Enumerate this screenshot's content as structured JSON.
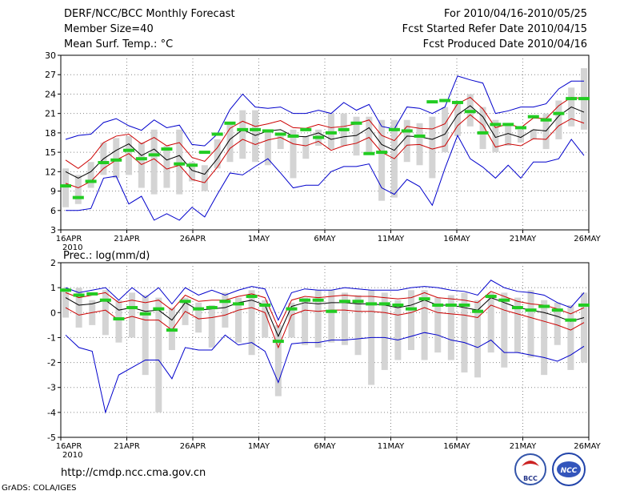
{
  "header": {
    "title": "DERF/NCC/BCC Monthly Forecast",
    "member_size": "Member Size=40",
    "variable": "Mean Surf. Temp.: °C",
    "period": "For 2010/04/16-2010/05/25",
    "fcst_started": "Fcst Started Refer Date 2010/04/15",
    "fcst_produced": "Fcst Produced Date 2010/04/16"
  },
  "footer": {
    "url": "http://cmdp.ncc.cma.gov.cn",
    "credit": "GrADS: COLA/IGES",
    "logo_left": "BCC",
    "logo_right": "NCC"
  },
  "colors": {
    "box": "#d4d4d4",
    "median": "#22cc22",
    "mean": "#000000",
    "sd": "#cc0000",
    "minmax": "#0000cc"
  },
  "chart_data": [
    {
      "type": "box",
      "panel": "temperature",
      "title": "Mean Surf. Temp.: °C",
      "x_ticks": [
        "16APR",
        "21APR",
        "26APR",
        "1MAY",
        "6MAY",
        "11MAY",
        "16MAY",
        "21MAY",
        "26MAY"
      ],
      "x_tick_days": [
        0,
        5,
        10,
        15,
        20,
        25,
        30,
        35,
        40
      ],
      "year_label": "2010",
      "ylim": [
        3,
        30
      ],
      "yticks": [
        3,
        6,
        9,
        12,
        15,
        18,
        21,
        24,
        27,
        30
      ],
      "mean": [
        12,
        11,
        12,
        14,
        15.3,
        16.3,
        14.5,
        15.5,
        13.8,
        14.5,
        12.2,
        11.6,
        14,
        17,
        18.5,
        17.6,
        18.3,
        18.5,
        17.5,
        17.4,
        18,
        17,
        17.4,
        17.6,
        18.8,
        16.2,
        15.3,
        17.5,
        17.4,
        17,
        17.8,
        20.8,
        22.2,
        20.5,
        17.3,
        17.9,
        17.3,
        18.5,
        18.3,
        20.6,
        22,
        21.2
      ],
      "sd_upper": [
        13.8,
        12.5,
        14,
        16.5,
        17.5,
        17.8,
        16.3,
        17.3,
        16,
        16.5,
        14.2,
        13.6,
        15.7,
        18.7,
        19.8,
        19,
        19.4,
        19.9,
        18.8,
        18.7,
        19.3,
        18.8,
        19,
        19.4,
        20,
        17.6,
        16.8,
        19,
        18.7,
        18.6,
        19.4,
        22.5,
        23.5,
        21.7,
        18.8,
        19.4,
        18.8,
        20.3,
        20.2,
        22.2,
        23.5,
        23.3
      ],
      "sd_lower": [
        10.2,
        9.5,
        10.5,
        12.5,
        13.8,
        14.8,
        13.1,
        14,
        12.4,
        13,
        10.8,
        10.3,
        12.7,
        15.6,
        17,
        16.2,
        16.9,
        17.3,
        16.3,
        16,
        16.7,
        15.3,
        16,
        16.4,
        17.3,
        15,
        14,
        16.1,
        16.2,
        15.5,
        16,
        19.1,
        20.8,
        19.2,
        15.8,
        16.3,
        16,
        17.1,
        17,
        19.1,
        20.2,
        19.5
      ],
      "max": [
        17,
        17.6,
        17.8,
        19.6,
        20.2,
        19.1,
        18.4,
        20,
        18.8,
        19.2,
        16.2,
        16,
        17.8,
        21.6,
        24,
        22,
        21.8,
        22,
        21,
        21,
        21.5,
        21,
        22.7,
        21.5,
        22.4,
        19,
        18.6,
        22,
        21.8,
        21,
        22,
        26.8,
        26.2,
        25.7,
        21,
        21.4,
        22,
        22,
        22.5,
        24.8,
        26,
        26
      ],
      "min": [
        6,
        6,
        6.3,
        11,
        11.3,
        7,
        8.2,
        4.5,
        5.5,
        4.5,
        6.5,
        5,
        8.5,
        11.8,
        11.5,
        12.8,
        14,
        11.8,
        9.5,
        9.9,
        9.9,
        12,
        12.8,
        12.8,
        13.2,
        9.5,
        8.5,
        10.8,
        9.7,
        6.8,
        12.5,
        17.6,
        14,
        12.7,
        11,
        13,
        11,
        13.5,
        13.5,
        14,
        17,
        14.5
      ],
      "box_high": [
        12.5,
        11.5,
        13.5,
        16.5,
        17.2,
        17.5,
        16.5,
        18.5,
        16,
        18.5,
        13.5,
        13,
        17,
        19.5,
        21.5,
        21.5,
        18.5,
        17.5,
        18.5,
        17.5,
        18.5,
        21,
        21,
        20.5,
        20.5,
        20,
        20,
        20,
        19.5,
        20.5,
        22,
        22.5,
        24,
        22,
        20,
        19.5,
        18.5,
        18.5,
        21,
        23,
        25,
        28
      ],
      "box_low": [
        6.5,
        7,
        9.5,
        11.5,
        11,
        11.5,
        9.5,
        8.5,
        9.5,
        8.5,
        10.5,
        9,
        12.5,
        13.5,
        14,
        13.5,
        13,
        15.5,
        11,
        14,
        16,
        15.5,
        16,
        14.5,
        15,
        7.5,
        8,
        13.5,
        13,
        11,
        15,
        17.5,
        19,
        15.5,
        15,
        16,
        16.5,
        17,
        15.5,
        17,
        19,
        18.5
      ],
      "median": [
        9.8,
        8,
        10.5,
        13.4,
        13.8,
        15.3,
        14,
        14.6,
        15.5,
        13.2,
        13,
        15,
        17.8,
        19.5,
        18.5,
        18.5,
        18.3,
        17.8,
        17.5,
        18.5,
        17.3,
        18,
        18.5,
        19.5,
        14.8,
        15,
        18.5,
        18.3,
        17.5,
        22.8,
        23,
        22.7,
        21.3,
        18,
        19.3,
        19.3,
        18.8,
        20.5,
        20,
        21,
        23.3,
        23.3
      ]
    },
    {
      "type": "box",
      "panel": "precipitation",
      "title": "Prec.: log(mm/d)",
      "x_ticks": [
        "16APR",
        "21APR",
        "26APR",
        "1MAY",
        "6MAY",
        "11MAY",
        "16MAY",
        "21MAY",
        "26MAY"
      ],
      "x_tick_days": [
        0,
        5,
        10,
        15,
        20,
        25,
        30,
        35,
        40
      ],
      "year_label": "2010",
      "ylim": [
        -5,
        2
      ],
      "yticks": [
        -5,
        -4,
        -3,
        -2,
        -1,
        0,
        1,
        2
      ],
      "mean": [
        0.6,
        0.3,
        0.35,
        0.5,
        0.1,
        0.2,
        0.05,
        0.1,
        -0.3,
        0.4,
        0.1,
        0.15,
        0.2,
        0.4,
        0.5,
        0.3,
        -0.95,
        0.25,
        0.4,
        0.35,
        0.4,
        0.4,
        0.35,
        0.35,
        0.3,
        0.2,
        0.3,
        0.5,
        0.3,
        0.3,
        0.2,
        0.1,
        0.6,
        0.4,
        0.2,
        0.1,
        0,
        -0.15,
        -0.35,
        -0.2
      ],
      "sd_upper": [
        0.8,
        0.6,
        0.7,
        0.8,
        0.4,
        0.5,
        0.4,
        0.5,
        0.1,
        0.7,
        0.45,
        0.5,
        0.5,
        0.65,
        0.75,
        0.6,
        -0.6,
        0.5,
        0.65,
        0.6,
        0.65,
        0.7,
        0.65,
        0.65,
        0.6,
        0.55,
        0.6,
        0.8,
        0.6,
        0.55,
        0.5,
        0.4,
        0.85,
        0.65,
        0.45,
        0.35,
        0.3,
        0.15,
        -0.05,
        0.2
      ],
      "sd_lower": [
        0.2,
        -0.1,
        0,
        0.1,
        -0.3,
        -0.15,
        -0.3,
        -0.3,
        -0.7,
        0.05,
        -0.25,
        -0.2,
        -0.1,
        0.1,
        0.2,
        0,
        -1.4,
        -0.1,
        0.1,
        0.05,
        0.1,
        0.1,
        0.05,
        0.05,
        0,
        -0.1,
        0,
        0.2,
        0,
        -0.05,
        -0.1,
        -0.2,
        0.3,
        0.1,
        -0.05,
        -0.2,
        -0.35,
        -0.5,
        -0.7,
        -0.4
      ],
      "max": [
        1,
        0.8,
        0.9,
        1,
        0.5,
        1,
        0.6,
        1,
        0.35,
        1,
        0.7,
        0.9,
        0.7,
        0.9,
        1.05,
        0.95,
        -0.3,
        0.8,
        0.95,
        0.9,
        0.9,
        1,
        0.95,
        0.9,
        0.9,
        0.9,
        1,
        1.05,
        1,
        0.9,
        0.85,
        0.7,
        1.3,
        1,
        0.85,
        0.8,
        0.7,
        0.4,
        0.2,
        0.8
      ],
      "min": [
        -0.9,
        -1.4,
        -1.55,
        -4,
        -2.5,
        -2.2,
        -1.9,
        -1.9,
        -2.65,
        -1.4,
        -1.5,
        -1.5,
        -0.9,
        -1.3,
        -1.2,
        -1.55,
        -2.8,
        -1.25,
        -1.2,
        -1.2,
        -1.1,
        -1.1,
        -1.05,
        -1,
        -1,
        -1.1,
        -0.95,
        -0.8,
        -0.9,
        -1.1,
        -1.2,
        -1.4,
        -1.1,
        -1.6,
        -1.6,
        -1.7,
        -1.8,
        -1.95,
        -1.7,
        -1.35
      ],
      "box_high": [
        1,
        1,
        0.5,
        0.9,
        0.5,
        0.8,
        0.7,
        0.6,
        0.2,
        0.6,
        0.4,
        0.3,
        0.8,
        0.6,
        0.9,
        0.5,
        -0.5,
        0.4,
        0.6,
        0.9,
        0.9,
        0.8,
        0.7,
        0.9,
        0.8,
        0.5,
        0.9,
        0.9,
        0.6,
        0.7,
        0.8,
        0.5,
        0.8,
        0.8,
        0.6,
        0.9,
        0.5,
        0.4,
        0.3,
        0.8
      ],
      "box_low": [
        -0.2,
        -0.6,
        -0.5,
        -0.9,
        -1.2,
        -1,
        -2.5,
        -4,
        -1.5,
        -0.5,
        -0.8,
        -1.4,
        -0.6,
        -1.2,
        -1.7,
        -1,
        -3.35,
        -1,
        -1.3,
        -1.4,
        -1.2,
        -1.3,
        -1.7,
        -2.9,
        -2.3,
        -1.9,
        -1.5,
        -1.9,
        -1.6,
        -1.9,
        -2.4,
        -2.6,
        -1.6,
        -2.2,
        -1.6,
        -1.8,
        -2.5,
        -1.3,
        -2.3,
        -2
      ],
      "median": [
        0.9,
        0.7,
        0.75,
        0.5,
        -0.25,
        0.2,
        -0.05,
        0.15,
        -0.7,
        0.45,
        0.15,
        0.2,
        0.45,
        0.35,
        0.65,
        0.3,
        -1.15,
        0.15,
        0.5,
        0.5,
        0.05,
        0.45,
        0.45,
        0.35,
        0.35,
        0.3,
        0.15,
        0.55,
        0.3,
        0.3,
        0.3,
        0.05,
        0.65,
        0.5,
        0.2,
        0.1,
        0.25,
        0.1,
        -0.3,
        0.3
      ]
    }
  ]
}
